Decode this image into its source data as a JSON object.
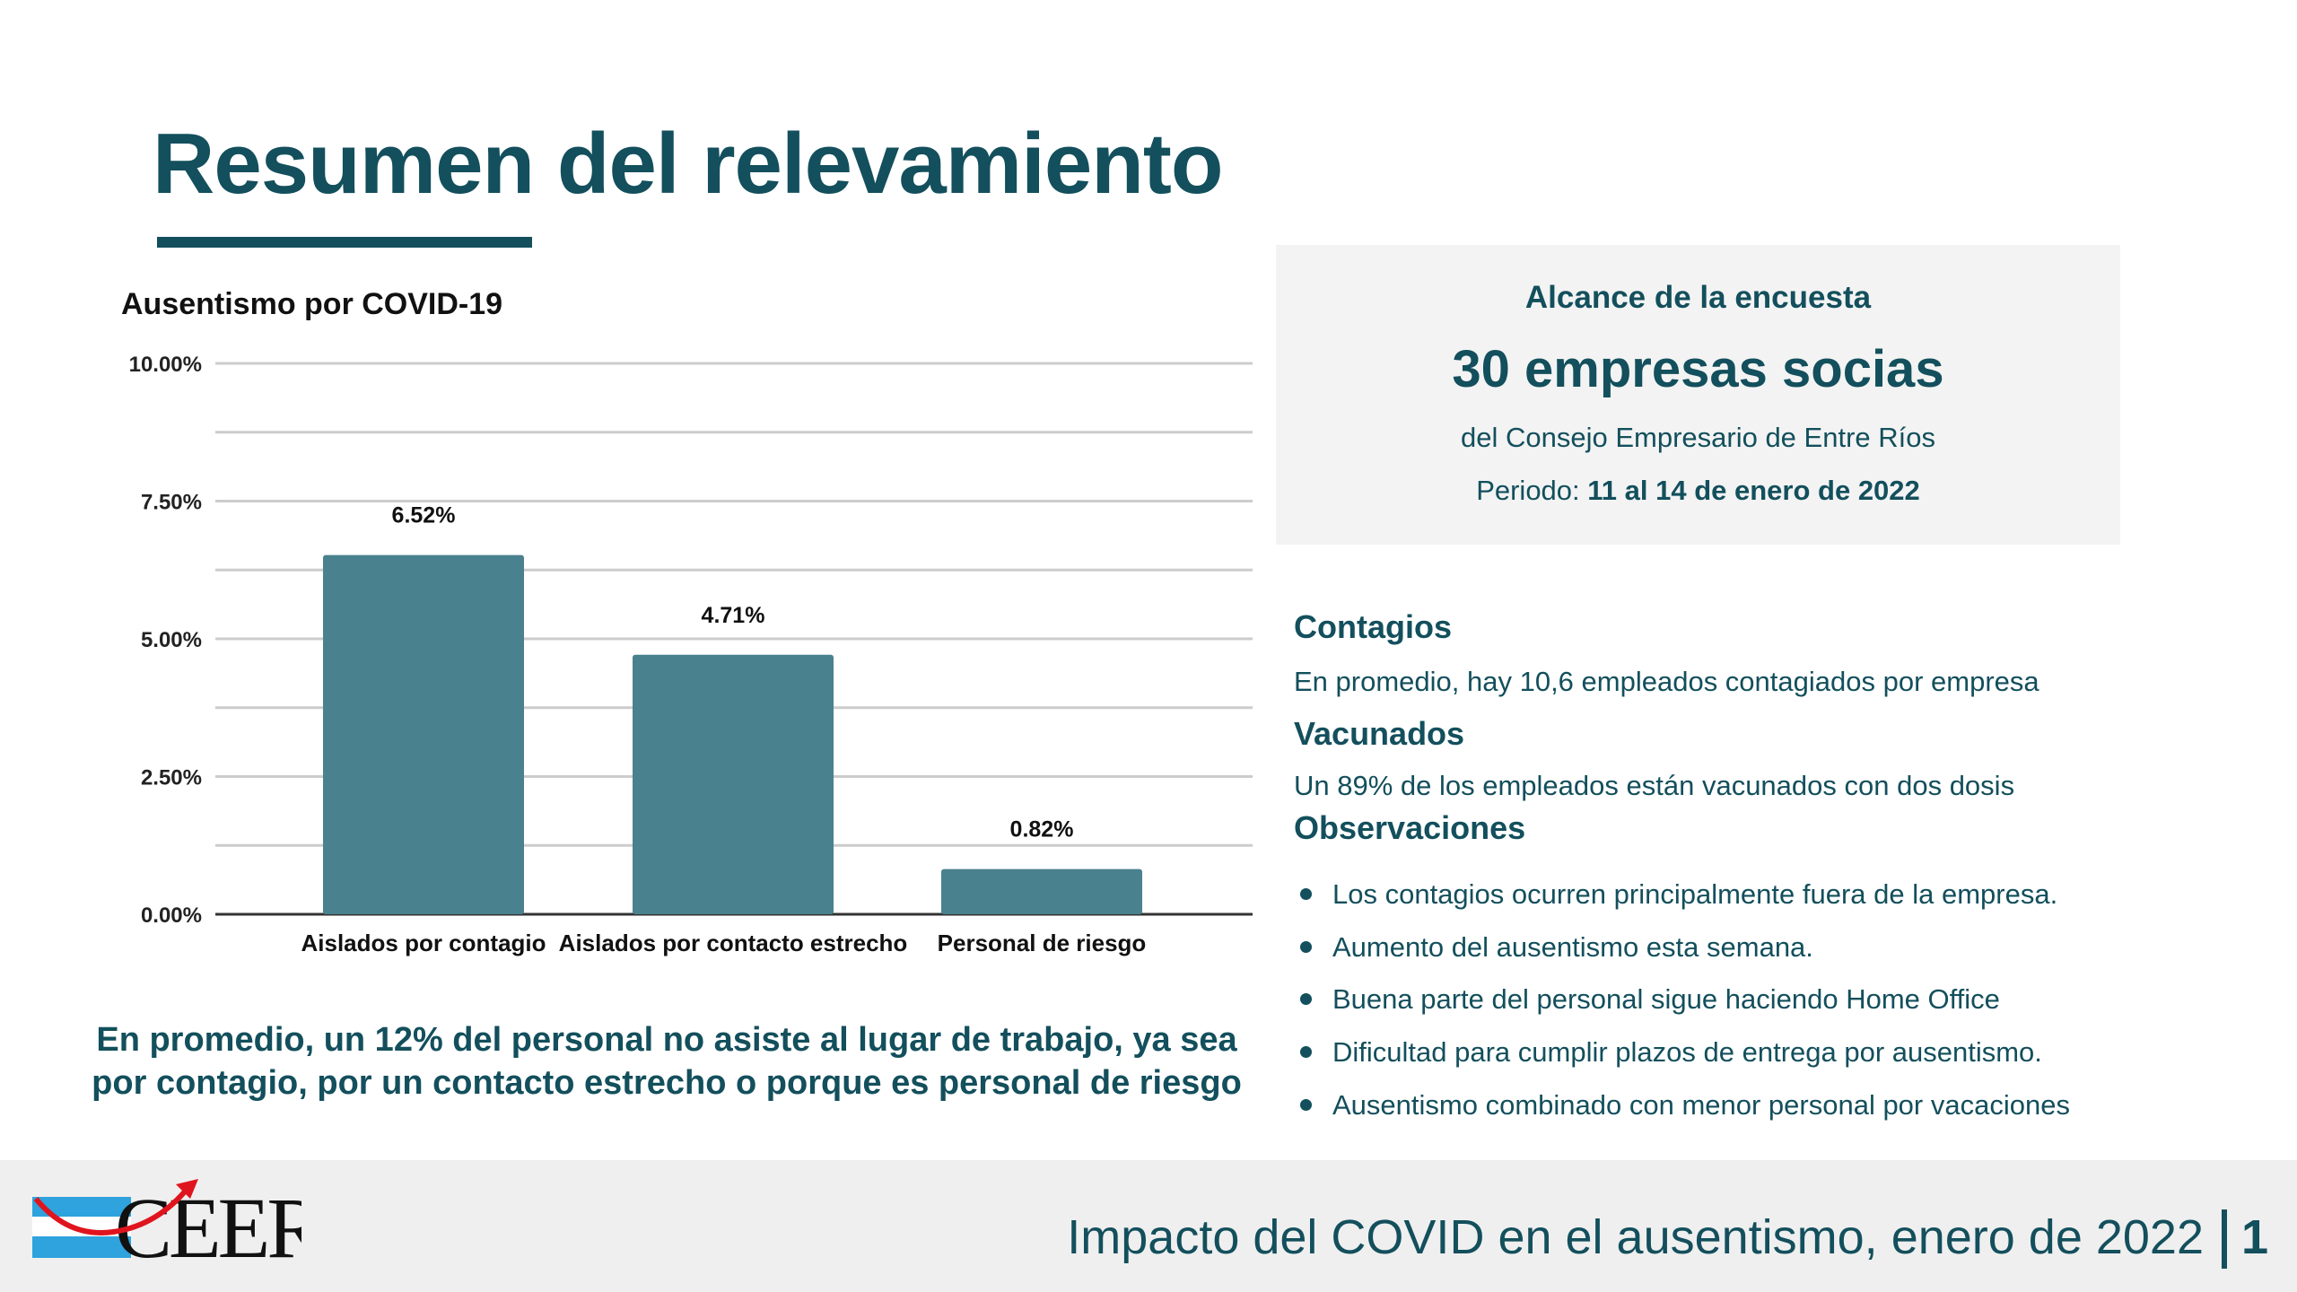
{
  "title": "Resumen del relevamiento",
  "chart_data": {
    "type": "bar",
    "title": "Ausentismo por COVID-19",
    "categories": [
      "Aislados por contagio",
      "Aislados por contacto estrecho",
      "Personal de riesgo"
    ],
    "values": [
      6.52,
      4.71,
      0.82
    ],
    "value_labels": [
      "6.52%",
      "4.71%",
      "0.82%"
    ],
    "ylim": [
      0,
      10
    ],
    "yticks": [
      "0.00%",
      "2.50%",
      "5.00%",
      "7.50%",
      "10.00%"
    ],
    "xlabel": "",
    "ylabel": "",
    "grid": true,
    "bar_color": "#4a818e"
  },
  "summary_line1": "En promedio, un 12% del personal no asiste al lugar de trabajo, ya sea",
  "summary_line2": "por contagio, por un contacto estrecho o porque es personal de riesgo",
  "scope": {
    "label": "Alcance de la encuesta",
    "value": "30 empresas socias",
    "org": "del Consejo Empresario de Entre Ríos",
    "period_label": "Periodo: ",
    "period_value": "11 al 14 de enero de 2022"
  },
  "contagios": {
    "heading": "Contagios",
    "text": "En promedio, hay 10,6 empleados contagiados por empresa"
  },
  "vacunados": {
    "heading": "Vacunados",
    "text": "Un  89% de los empleados están vacunados con dos dosis"
  },
  "observaciones": {
    "heading": "Observaciones",
    "items": [
      "Los contagios ocurren principalmente fuera de la empresa.",
      "Aumento del ausentismo esta semana.",
      "Buena parte del personal sigue haciendo Home Office",
      "Dificultad para cumplir plazos de entrega por ausentismo.",
      "Ausentismo combinado con menor personal por vacaciones"
    ]
  },
  "footer": {
    "text": "Impacto del COVID en el ausentismo, enero de 2022",
    "page": "1",
    "logo_text": "CEER"
  },
  "colors": {
    "primary": "#134f5c",
    "bar": "#4a818e",
    "panel": "#f3f3f3",
    "footer": "#efefef"
  }
}
